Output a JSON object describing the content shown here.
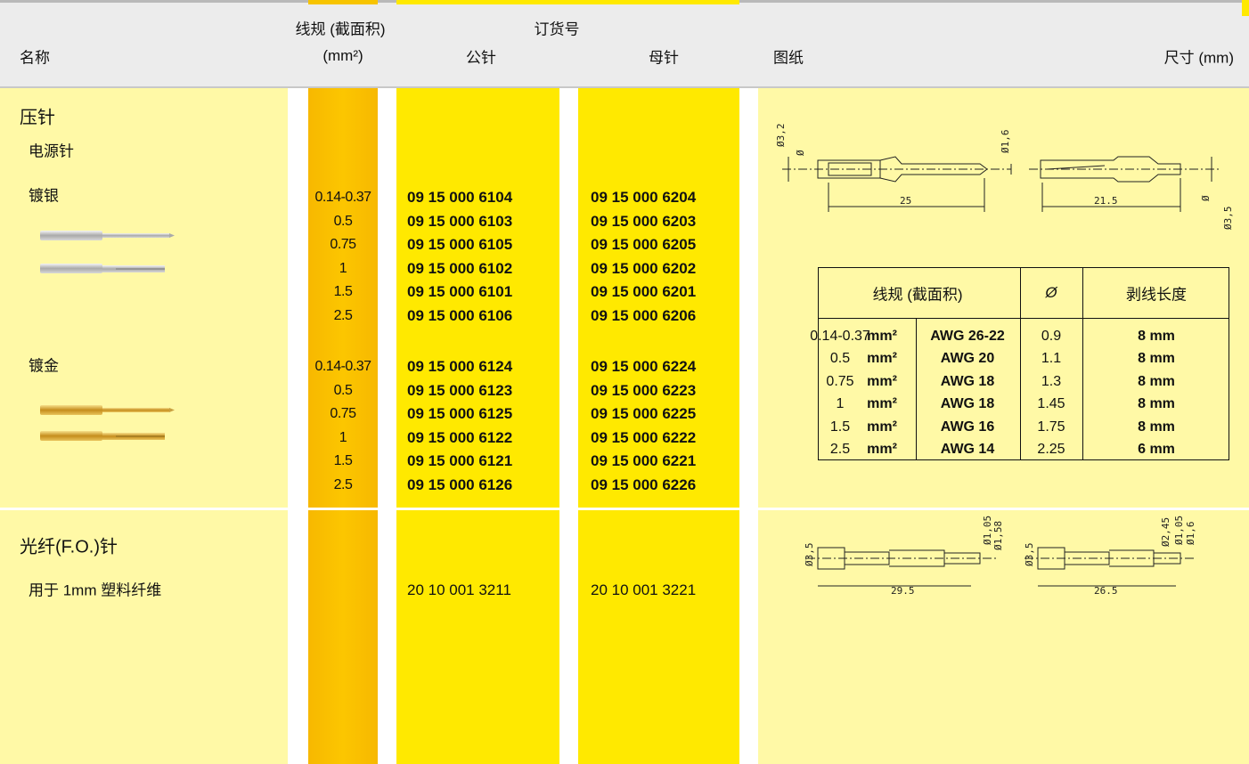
{
  "header": {
    "name": "名称",
    "gauge": "线规 (截面积)",
    "gauge_unit": "(mm²)",
    "order_no": "订货号",
    "male": "公针",
    "female": "母针",
    "drawing": "图纸",
    "dimensions": "尺寸 (mm)"
  },
  "sections": [
    {
      "title": "压针",
      "subtitle": "电源针",
      "groups": [
        {
          "label": "镀银",
          "rows": [
            {
              "gauge": "0.14-0.37",
              "male": "09 15 000 6104",
              "female": "09 15 000 6204"
            },
            {
              "gauge": "0.5",
              "male": "09 15 000 6103",
              "female": "09 15 000 6203"
            },
            {
              "gauge": "0.75",
              "male": "09 15 000 6105",
              "female": "09 15 000 6205"
            },
            {
              "gauge": "1",
              "male": "09 15 000 6102",
              "female": "09 15 000 6202"
            },
            {
              "gauge": "1.5",
              "male": "09 15 000 6101",
              "female": "09 15 000 6201"
            },
            {
              "gauge": "2.5",
              "male": "09 15 000 6106",
              "female": "09 15 000 6206"
            }
          ]
        },
        {
          "label": "镀金",
          "rows": [
            {
              "gauge": "0.14-0.37",
              "male": "09 15 000 6124",
              "female": "09 15 000 6224"
            },
            {
              "gauge": "0.5",
              "male": "09 15 000 6123",
              "female": "09 15 000 6223"
            },
            {
              "gauge": "0.75",
              "male": "09 15 000 6125",
              "female": "09 15 000 6225"
            },
            {
              "gauge": "1",
              "male": "09 15 000 6122",
              "female": "09 15 000 6222"
            },
            {
              "gauge": "1.5",
              "male": "09 15 000 6121",
              "female": "09 15 000 6221"
            },
            {
              "gauge": "2.5",
              "male": "09 15 000 6126",
              "female": "09 15 000 6226"
            }
          ]
        }
      ]
    },
    {
      "title": "光纤(F.O.)针",
      "subtitle": "用于 1mm 塑料纤维",
      "male": "20 10 001 3211",
      "female": "20 10 001 3221"
    }
  ],
  "drawing_labels": {
    "crimp_male": [
      "Ø3,2",
      "Ø",
      "Ø1,6",
      "25"
    ],
    "crimp_female": [
      "21.5",
      "Ø",
      "Ø3,5"
    ],
    "fo_male": [
      "Ø3,5",
      "Ø1,05",
      "Ø1,58",
      "29.5"
    ],
    "fo_female": [
      "Ø3,5",
      "Ø2,45",
      "Ø1,05",
      "Ø1,6",
      "26.5"
    ]
  },
  "spec_table": {
    "header": [
      "线规 (截面积)",
      "Ø",
      "剥线长度"
    ],
    "rows": [
      [
        "0.14-0.37",
        "mm²",
        "AWG 26-22",
        "0.9",
        "8 mm"
      ],
      [
        "0.5",
        "mm²",
        "AWG 20",
        "1.1",
        "8 mm"
      ],
      [
        "0.75",
        "mm²",
        "AWG 18",
        "1.3",
        "8 mm"
      ],
      [
        "1",
        "mm²",
        "AWG 18",
        "1.45",
        "8 mm"
      ],
      [
        "1.5",
        "mm²",
        "AWG 16",
        "1.75",
        "8 mm"
      ],
      [
        "2.5",
        "mm²",
        "AWG 14",
        "2.25",
        "6 mm"
      ]
    ]
  }
}
